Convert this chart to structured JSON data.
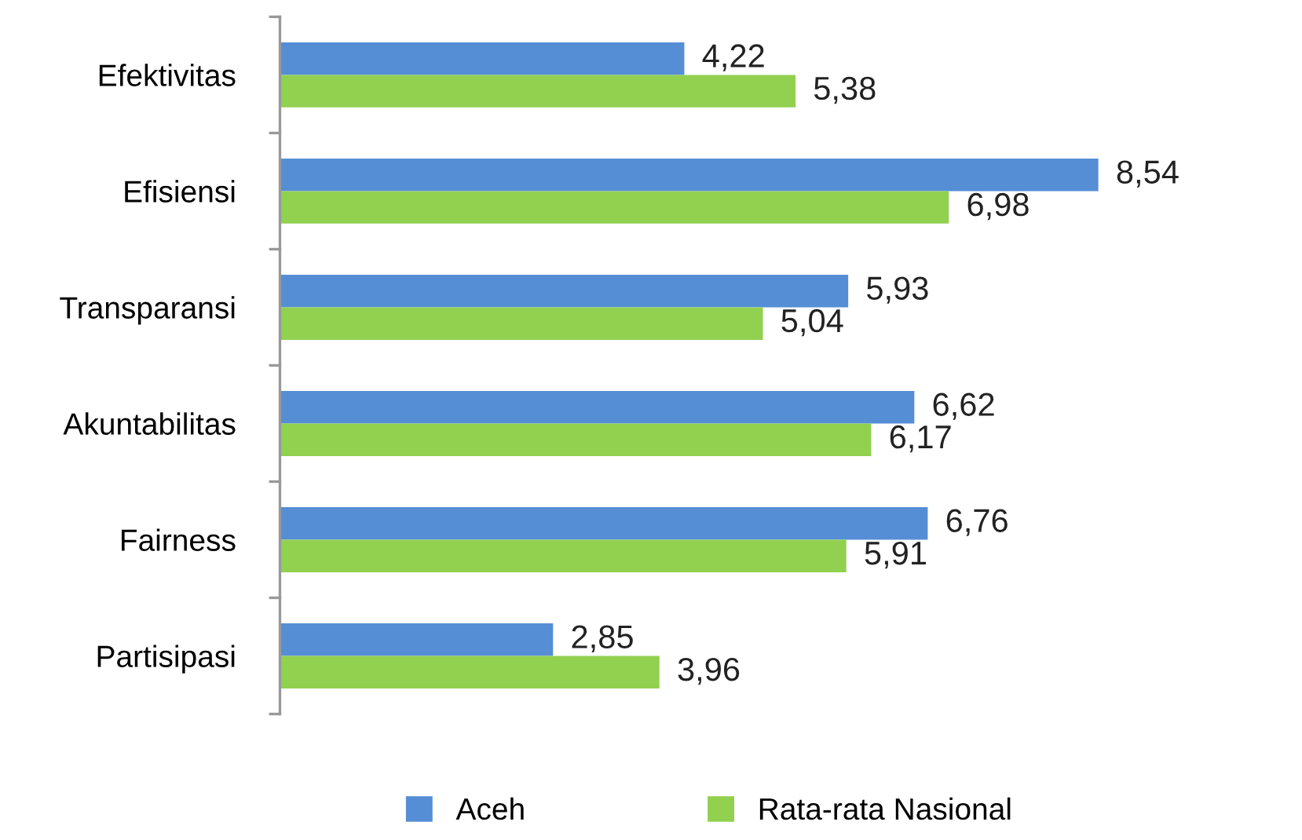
{
  "chart_data": {
    "type": "bar",
    "orientation": "horizontal",
    "categories": [
      "Efektivitas",
      "Efisiensi",
      "Transparansi",
      "Akuntabilitas",
      "Fairness",
      "Partisipasi"
    ],
    "series": [
      {
        "name": "Aceh",
        "color": "#558ed5",
        "values": [
          4.22,
          8.54,
          5.93,
          6.62,
          6.76,
          2.85
        ],
        "value_labels": [
          "4,22",
          "8,54",
          "5,93",
          "6,62",
          "6,76",
          "2,85"
        ]
      },
      {
        "name": "Rata-rata Nasional",
        "color": "#92d050",
        "values": [
          5.38,
          6.98,
          5.04,
          6.17,
          5.91,
          3.96
        ],
        "value_labels": [
          "5,38",
          "6,98",
          "5,04",
          "6,17",
          "5,91",
          "3,96"
        ]
      }
    ],
    "tick_labels": "y",
    "legend": "bottom",
    "grid": false
  }
}
